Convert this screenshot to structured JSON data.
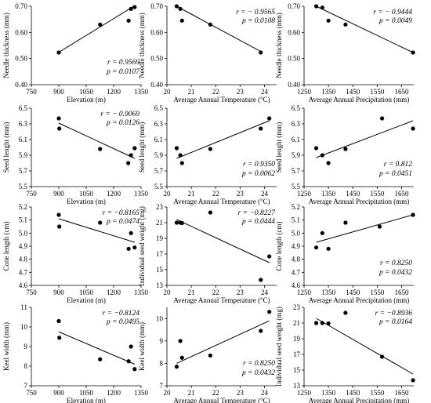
{
  "chart_data": [
    {
      "type": "scatter",
      "xlabel": "Elevation (m)",
      "ylabel": "Needle thickness (mm)",
      "xlim": [
        750,
        1350
      ],
      "ylim": [
        0.4,
        0.7
      ],
      "xticks": [
        750,
        900,
        1050,
        1200,
        1350
      ],
      "yticks": [
        0.4,
        0.5,
        0.6,
        0.7
      ],
      "points": [
        [
          900,
          0.523
        ],
        [
          1126,
          0.63
        ],
        [
          1282,
          0.645
        ],
        [
          1295,
          0.69
        ],
        [
          1315,
          0.697
        ]
      ],
      "trendline": [
        [
          900,
          0.524
        ],
        [
          1315,
          0.702
        ]
      ],
      "stats": {
        "r": "r = 0.9569",
        "p": "p = 0.0107"
      },
      "stats_pos": "bottom-right"
    },
    {
      "type": "scatter",
      "xlabel": "Average Annual Temperature (°C)",
      "ylabel": "Needle thickness (mm)",
      "xlim": [
        20,
        24.5
      ],
      "ylim": [
        0.4,
        0.7
      ],
      "xticks": [
        20,
        21,
        22,
        23,
        24
      ],
      "yticks": [
        0.4,
        0.5,
        0.6,
        0.7
      ],
      "points": [
        [
          20.4,
          0.7
        ],
        [
          20.55,
          0.69
        ],
        [
          20.62,
          0.645
        ],
        [
          21.78,
          0.63
        ],
        [
          23.85,
          0.523
        ]
      ],
      "trendline": [
        [
          20.4,
          0.7
        ],
        [
          23.85,
          0.527
        ]
      ],
      "stats": {
        "r": "r = − 0.9565",
        "p": "p = 0.0108"
      },
      "stats_pos": "top-right"
    },
    {
      "type": "scatter",
      "xlabel": "Average Annual Precipitation (mm)",
      "ylabel": "Needle thickness (mm)",
      "xlim": [
        1250,
        1700
      ],
      "ylim": [
        0.4,
        0.7
      ],
      "xticks": [
        1250,
        1350,
        1450,
        1550,
        1650
      ],
      "yticks": [
        0.4,
        0.5,
        0.6,
        0.7
      ],
      "points": [
        [
          1300,
          0.7
        ],
        [
          1325,
          0.695
        ],
        [
          1350,
          0.645
        ],
        [
          1420,
          0.63
        ],
        [
          1697,
          0.523
        ]
      ],
      "trendline": [
        [
          1300,
          0.7
        ],
        [
          1697,
          0.523
        ]
      ],
      "stats": {
        "r": "r = − 0.9444",
        "p": "p = 0.0049"
      },
      "stats_pos": "top-right"
    },
    {
      "type": "scatter",
      "xlabel": "Elevation (m)",
      "ylabel": "Seed lenght (mm)",
      "xlim": [
        750,
        1350
      ],
      "ylim": [
        5.5,
        6.5
      ],
      "xticks": [
        750,
        900,
        1050,
        1200,
        1350
      ],
      "yticks": [
        5.5,
        5.7,
        5.9,
        6.1,
        6.3,
        6.5
      ],
      "points": [
        [
          900,
          6.37
        ],
        [
          903,
          6.24
        ],
        [
          1126,
          5.98
        ],
        [
          1280,
          5.8
        ],
        [
          1295,
          5.9
        ],
        [
          1315,
          5.99
        ]
      ],
      "trendline": [
        [
          900,
          6.31
        ],
        [
          1315,
          5.86
        ]
      ],
      "stats": {
        "r": "r = − 0.9069",
        "p": "p = 0.0126"
      },
      "stats_pos": "top-right"
    },
    {
      "type": "scatter",
      "xlabel": "Average Annual Temperature (°C)",
      "ylabel": "Seed lenght (mm)",
      "xlim": [
        20,
        24.5
      ],
      "ylim": [
        5.5,
        6.5
      ],
      "xticks": [
        20,
        21,
        22,
        23,
        24
      ],
      "yticks": [
        5.5,
        5.7,
        5.9,
        6.1,
        6.3,
        6.5
      ],
      "points": [
        [
          20.4,
          5.99
        ],
        [
          20.55,
          5.9
        ],
        [
          20.62,
          5.8
        ],
        [
          21.78,
          5.98
        ],
        [
          23.85,
          6.24
        ],
        [
          24.2,
          6.37
        ]
      ],
      "trendline": [
        [
          20.4,
          5.86
        ],
        [
          24.2,
          6.34
        ]
      ],
      "stats": {
        "r": "r = 0.9350",
        "p": "p = 0.0062"
      },
      "stats_pos": "bottom-right"
    },
    {
      "type": "scatter",
      "xlabel": "Average Annual Precipitation (mm)",
      "ylabel": "Seed lenght (mm)",
      "xlim": [
        1250,
        1700
      ],
      "ylim": [
        5.5,
        6.5
      ],
      "xticks": [
        1250,
        1350,
        1450,
        1550,
        1650
      ],
      "yticks": [
        5.5,
        5.7,
        5.9,
        6.1,
        6.3,
        6.5
      ],
      "points": [
        [
          1300,
          5.99
        ],
        [
          1325,
          5.9
        ],
        [
          1350,
          5.8
        ],
        [
          1420,
          5.98
        ],
        [
          1570,
          6.37
        ],
        [
          1697,
          6.24
        ]
      ],
      "trendline": [
        [
          1300,
          5.87
        ],
        [
          1697,
          6.34
        ]
      ],
      "stats": {
        "r": "r = 0.812",
        "p": "p = 0.0451"
      },
      "stats_pos": "bottom-right"
    },
    {
      "type": "scatter",
      "xlabel": "Elevation (m)",
      "ylabel": "Cone length (cm)",
      "xlim": [
        750,
        1350
      ],
      "ylim": [
        4.6,
        5.2
      ],
      "xticks": [
        750,
        900,
        1050,
        1200,
        1350
      ],
      "yticks": [
        4.6,
        4.7,
        4.8,
        4.9,
        5.0,
        5.1,
        5.2
      ],
      "points": [
        [
          900,
          5.14
        ],
        [
          903,
          5.05
        ],
        [
          1126,
          5.08
        ],
        [
          1282,
          4.88
        ],
        [
          1295,
          5.0
        ],
        [
          1315,
          4.89
        ]
      ],
      "trendline": [
        [
          900,
          5.11
        ],
        [
          1315,
          4.93
        ]
      ],
      "stats": {
        "r": "r = −0.8165",
        "p": "p = 0.0474"
      },
      "stats_pos": "top-right"
    },
    {
      "type": "scatter",
      "xlabel": "Average Annual Temperature (°C)",
      "ylabel": "Individual seed weight (mg)",
      "xlim": [
        20,
        24.5
      ],
      "ylim": [
        13,
        23
      ],
      "xticks": [
        20,
        21,
        22,
        23,
        24
      ],
      "yticks": [
        13,
        15,
        17,
        19,
        21,
        23
      ],
      "points": [
        [
          20.4,
          21.0
        ],
        [
          20.55,
          21.0
        ],
        [
          20.62,
          20.95
        ],
        [
          21.78,
          22.3
        ],
        [
          23.85,
          13.7
        ],
        [
          24.2,
          16.7
        ]
      ],
      "trendline": [
        [
          20.4,
          21.4
        ],
        [
          24.2,
          15.9
        ]
      ],
      "stats": {
        "r": "r = −0.8227",
        "p": "p = 0.0444"
      },
      "stats_pos": "top-right"
    },
    {
      "type": "scatter",
      "xlabel": "Average Annual Precipitation (mm)",
      "ylabel": "Cone length (cm)",
      "xlim": [
        1250,
        1700
      ],
      "ylim": [
        4.6,
        5.2
      ],
      "xticks": [
        1250,
        1350,
        1450,
        1550,
        1650
      ],
      "yticks": [
        4.6,
        4.7,
        4.8,
        4.9,
        5.0,
        5.1,
        5.2
      ],
      "points": [
        [
          1300,
          4.89
        ],
        [
          1325,
          5.0
        ],
        [
          1350,
          4.88
        ],
        [
          1420,
          5.08
        ],
        [
          1560,
          5.05
        ],
        [
          1697,
          5.14
        ]
      ],
      "trendline": [
        [
          1300,
          4.93
        ],
        [
          1697,
          5.14
        ]
      ],
      "stats": {
        "r": "r = 0.8250",
        "p": "p = 0.0432"
      },
      "stats_pos": "bottom-right"
    },
    {
      "type": "scatter",
      "xlabel": "Elevation (m)",
      "ylabel": "Keel width (mm)",
      "xlim": [
        750,
        1350
      ],
      "ylim": [
        7,
        11
      ],
      "xticks": [
        750,
        900,
        1050,
        1200,
        1350
      ],
      "yticks": [
        7,
        8,
        9,
        10,
        11
      ],
      "points": [
        [
          900,
          10.3
        ],
        [
          903,
          9.45
        ],
        [
          1126,
          8.35
        ],
        [
          1282,
          8.25
        ],
        [
          1295,
          9.0
        ],
        [
          1315,
          7.85
        ]
      ],
      "trendline": [
        [
          900,
          9.75
        ],
        [
          1315,
          8.1
        ]
      ],
      "stats": {
        "r": "r = −0.8124",
        "p": "p = 0.0495"
      },
      "stats_pos": "top-right"
    },
    {
      "type": "scatter",
      "xlabel": "Average Annual Temperature (°C)",
      "ylabel": "Keel width (mm)",
      "xlim": [
        20,
        24.5
      ],
      "ylim": [
        7,
        10.5
      ],
      "xticks": [
        20,
        21,
        22,
        23,
        24
      ],
      "yticks": [
        7,
        8,
        9,
        10
      ],
      "points": [
        [
          20.4,
          7.85
        ],
        [
          20.55,
          9.0
        ],
        [
          20.62,
          8.25
        ],
        [
          21.78,
          8.35
        ],
        [
          23.85,
          9.45
        ],
        [
          24.2,
          10.3
        ]
      ],
      "trendline": [
        [
          20.4,
          8.0
        ],
        [
          24.2,
          9.9
        ]
      ],
      "stats": {
        "r": "r = 0.8250",
        "p": "p = 0.0432"
      },
      "stats_pos": "bottom-right"
    },
    {
      "type": "scatter",
      "xlabel": "Average Annual Precipitation (mm)",
      "ylabel": "Individual seed weight (mg)",
      "xlim": [
        1250,
        1700
      ],
      "ylim": [
        13,
        23
      ],
      "xticks": [
        1250,
        1350,
        1450,
        1550,
        1650
      ],
      "yticks": [
        13,
        15,
        17,
        19,
        21,
        23
      ],
      "points": [
        [
          1300,
          21.0
        ],
        [
          1325,
          21.0
        ],
        [
          1350,
          20.95
        ],
        [
          1420,
          22.3
        ],
        [
          1570,
          16.7
        ],
        [
          1697,
          13.7
        ]
      ],
      "trendline": [
        [
          1300,
          21.6
        ],
        [
          1697,
          14.5
        ]
      ],
      "stats": {
        "r": "r = −0.8936",
        "p": "p = 0.0164"
      },
      "stats_pos": "top-right"
    }
  ]
}
